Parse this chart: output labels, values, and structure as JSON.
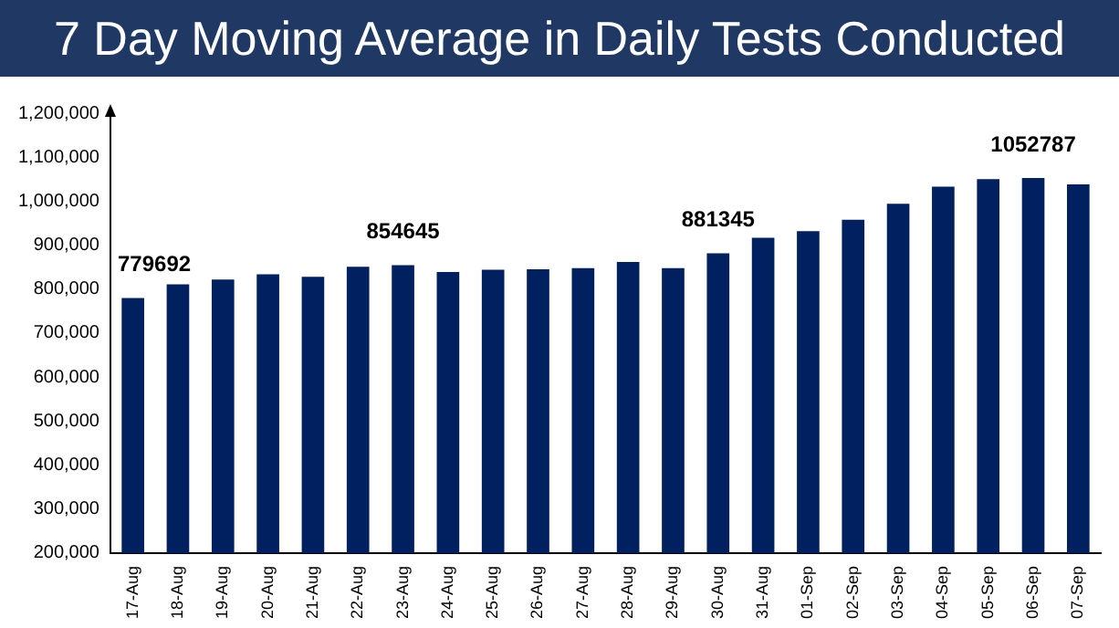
{
  "chart_data": {
    "type": "bar",
    "title": "7 Day Moving Average in Daily Tests Conducted",
    "categories": [
      "17-Aug",
      "18-Aug",
      "19-Aug",
      "20-Aug",
      "21-Aug",
      "22-Aug",
      "23-Aug",
      "24-Aug",
      "25-Aug",
      "26-Aug",
      "27-Aug",
      "28-Aug",
      "29-Aug",
      "30-Aug",
      "31-Aug",
      "01-Sep",
      "02-Sep",
      "03-Sep",
      "04-Sep",
      "05-Sep",
      "06-Sep",
      "07-Sep"
    ],
    "values": [
      779692,
      811000,
      822000,
      834000,
      828000,
      851000,
      854645,
      839000,
      844000,
      845000,
      848000,
      862000,
      848000,
      881345,
      917000,
      932000,
      958000,
      994000,
      1033000,
      1050000,
      1052787,
      1038000
    ],
    "value_labels": [
      "779692",
      null,
      null,
      null,
      null,
      null,
      "854645",
      null,
      null,
      null,
      null,
      null,
      null,
      "881345",
      null,
      null,
      null,
      null,
      null,
      null,
      "1052787",
      null
    ],
    "color": "#002060",
    "ylim": [
      200000,
      1200000
    ],
    "yticks": [
      {
        "value": 200000,
        "label": "200,000"
      },
      {
        "value": 300000,
        "label": "300,000"
      },
      {
        "value": 400000,
        "label": "400,000"
      },
      {
        "value": 500000,
        "label": "500,000"
      },
      {
        "value": 600000,
        "label": "600,000"
      },
      {
        "value": 700000,
        "label": "700,000"
      },
      {
        "value": 800000,
        "label": "800,000"
      },
      {
        "value": 900000,
        "label": "900,000"
      },
      {
        "value": 1000000,
        "label": "1,000,000"
      },
      {
        "value": 1100000,
        "label": "1,100,000"
      },
      {
        "value": 1200000,
        "label": "1,200,000"
      }
    ],
    "grid": false
  }
}
